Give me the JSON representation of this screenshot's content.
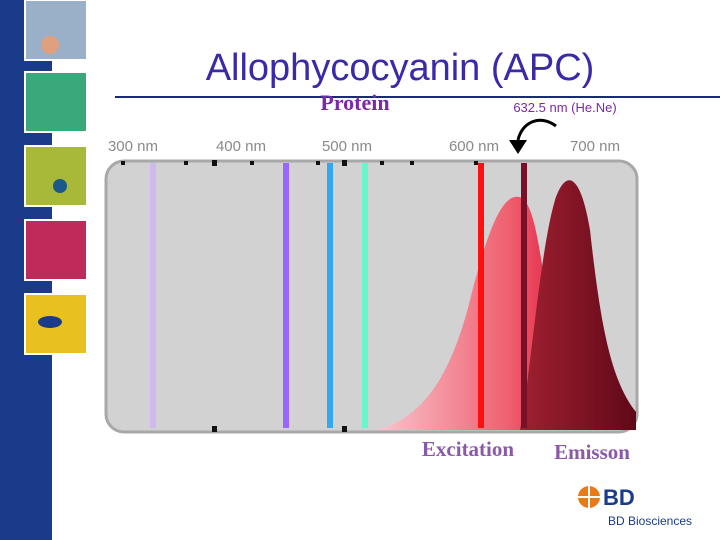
{
  "header": {
    "title": "Allophycocyanin (APC)",
    "subtitle": "Protein"
  },
  "laser_label": "632.5 nm (He.Ne)",
  "wavelength_labels": [
    "300 nm",
    "400 nm",
    "500 nm",
    "600 nm",
    "700 nm"
  ],
  "spectrum_labels": {
    "excitation": "Excitation",
    "emission": "Emisson"
  },
  "logo": {
    "mark": "BD",
    "company": "BD Biosciences"
  }
}
